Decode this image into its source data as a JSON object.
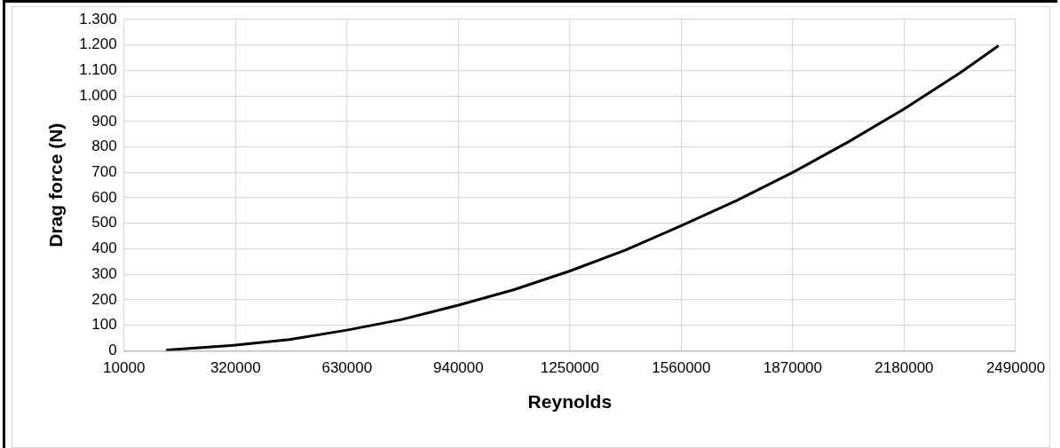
{
  "chart_data": {
    "type": "line",
    "xlabel": "Reynolds",
    "ylabel": "Drag force (N)",
    "x": [
      130000,
      320000,
      470000,
      630000,
      780000,
      940000,
      1095000,
      1250000,
      1405000,
      1560000,
      1715000,
      1870000,
      2025000,
      2180000,
      2335000,
      2440000
    ],
    "series": [
      {
        "color": "#000000",
        "values": [
          3,
          22,
          44,
          81,
          122,
          179,
          240,
          313,
          395,
          491,
          590,
          700,
          820,
          949,
          1090,
          1195
        ]
      }
    ],
    "xlim": [
      10000,
      2490000
    ],
    "xticks": [
      10000,
      320000,
      630000,
      940000,
      1250000,
      1560000,
      1870000,
      2180000,
      2490000
    ],
    "ylim": [
      0,
      1300
    ],
    "yticks": [
      0,
      100,
      200,
      300,
      400,
      500,
      600,
      700,
      800,
      900,
      {
        "value": 1000,
        "label": "1.000"
      },
      {
        "value": 1100,
        "label": "1.100"
      },
      {
        "value": 1200,
        "label": "1.200"
      },
      {
        "value": 1300,
        "label": "1.300"
      }
    ],
    "grid": true,
    "legend": false,
    "marker": "none",
    "line_style": "solid"
  }
}
